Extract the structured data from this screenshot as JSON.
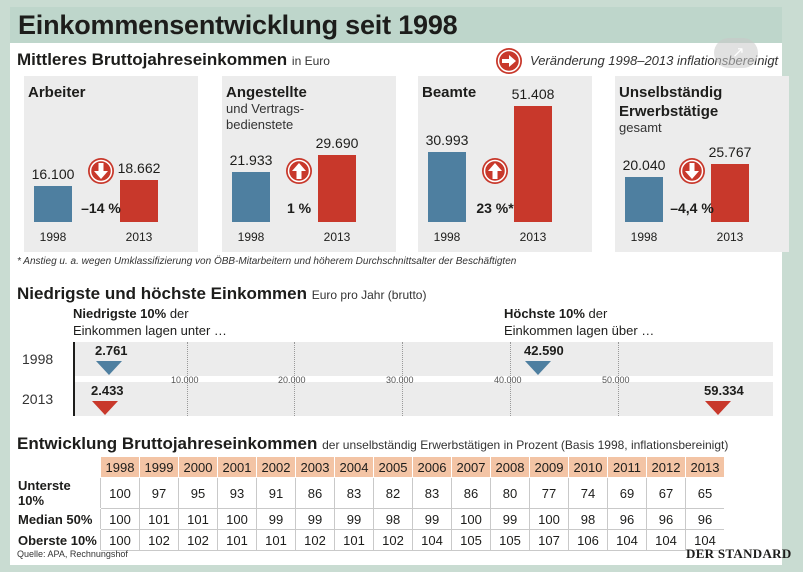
{
  "title": "Einkommensentwicklung seit 1998",
  "section1": {
    "heading": "Mittleres Bruttojahreseinkommen",
    "unit": "in Euro",
    "legend": "Veränderung 1998–2013 inflationsbereinigt",
    "footnote": "* Anstieg u. a. wegen Umklassifizierung von ÖBB-Mitarbeitern und höherem Durchschnittsalter der Beschäftigten"
  },
  "section2": {
    "heading": "Niedrigste und höchste Einkommen",
    "unit": "Euro pro Jahr (brutto)",
    "low_label_1": "Niedrigste 10%",
    "low_label_2": "der",
    "low_label_3": "Einkommen lagen unter …",
    "high_label_1": "Höchste 10%",
    "high_label_2": "der",
    "high_label_3": "Einkommen lagen über …"
  },
  "section3": {
    "heading": "Entwicklung Bruttojahreseinkommen",
    "unit": "der unselbständig Erwerbstätigen in Prozent (Basis 1998, inflationsbereinigt)"
  },
  "source": "Quelle: APA, Rechnungshof",
  "logo": "DER STANDARD",
  "colors": {
    "blue": "#4e7fa0",
    "red": "#c8382b",
    "header": "#f3c4a5"
  },
  "chart_data": [
    {
      "type": "bar",
      "title": "Mittleres Bruttojahreseinkommen in Euro",
      "categories": [
        "Arbeiter",
        "Angestellte und Vertragsbedienstete",
        "Beamte",
        "Unselbständig Erwerbstätige gesamt"
      ],
      "panels": [
        {
          "title": "Arbeiter",
          "subtitle": "",
          "x": [
            "1998",
            "2013"
          ],
          "values": [
            16100,
            18662
          ],
          "labels": [
            "16.100",
            "18.662"
          ],
          "change": "–14 %",
          "direction": "down"
        },
        {
          "title": "Angestellte",
          "subtitle": "und Vertrags-\nbedienstete",
          "x": [
            "1998",
            "2013"
          ],
          "values": [
            21933,
            29690
          ],
          "labels": [
            "21.933",
            "29.690"
          ],
          "change": "1 %",
          "direction": "up"
        },
        {
          "title": "Beamte",
          "subtitle": "",
          "x": [
            "1998",
            "2013"
          ],
          "values": [
            30993,
            51408
          ],
          "labels": [
            "30.993",
            "51.408"
          ],
          "change": "23 %*",
          "direction": "up"
        },
        {
          "title": "Unselbständig\nErwerbstätige",
          "subtitle": "gesamt",
          "x": [
            "1998",
            "2013"
          ],
          "values": [
            20040,
            25767
          ],
          "labels": [
            "20.040",
            "25.767"
          ],
          "change": "–4,4 %",
          "direction": "down"
        }
      ],
      "ylim": [
        0,
        55000
      ]
    },
    {
      "type": "scatter",
      "title": "Niedrigste und höchste Einkommen Euro pro Jahr (brutto)",
      "rows": [
        "1998",
        "2013"
      ],
      "xlim": [
        0,
        60000
      ],
      "ticks": [
        10000,
        20000,
        30000,
        40000,
        50000
      ],
      "tick_labels": [
        "10.000",
        "20.000",
        "30.000",
        "40.000",
        "50.000"
      ],
      "series": [
        {
          "name": "Niedrigste 10%",
          "values": [
            2761,
            2433
          ],
          "labels": [
            "2.761",
            "2.433"
          ]
        },
        {
          "name": "Höchste 10%",
          "values": [
            42590,
            59334
          ],
          "labels": [
            "42.590",
            "59.334"
          ]
        }
      ]
    },
    {
      "type": "table",
      "title": "Entwicklung Bruttojahreseinkommen",
      "columns": [
        "1998",
        "1999",
        "2000",
        "2001",
        "2002",
        "2003",
        "2004",
        "2005",
        "2006",
        "2007",
        "2008",
        "2009",
        "2010",
        "2011",
        "2012",
        "2013"
      ],
      "rows": [
        {
          "label": "Unterste 10%",
          "values": [
            100,
            97,
            95,
            93,
            91,
            86,
            83,
            82,
            83,
            86,
            80,
            77,
            74,
            69,
            67,
            65
          ]
        },
        {
          "label": "Median 50%",
          "values": [
            100,
            101,
            101,
            100,
            99,
            99,
            99,
            98,
            99,
            100,
            99,
            100,
            98,
            96,
            96,
            96
          ]
        },
        {
          "label": "Oberste 10%",
          "values": [
            100,
            102,
            102,
            101,
            101,
            102,
            101,
            102,
            104,
            105,
            105,
            107,
            106,
            104,
            104,
            104
          ]
        }
      ]
    }
  ]
}
